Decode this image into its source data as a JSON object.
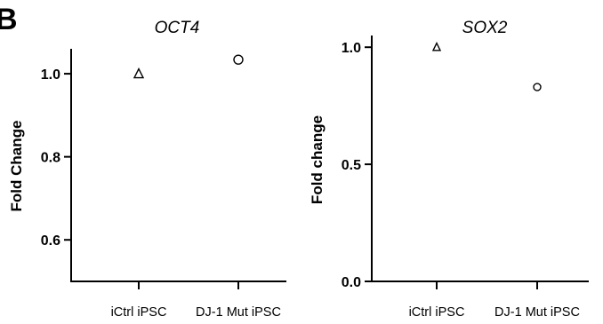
{
  "panel_letter": "B",
  "chart_data": [
    {
      "type": "scatter",
      "title": "OCT4",
      "xlabel": "",
      "ylabel": "Fold Change",
      "categories": [
        "iCtrl iPSC",
        "DJ-1 Mut iPSC"
      ],
      "values": [
        1.0,
        1.034
      ],
      "markers": [
        "triangle",
        "circle"
      ],
      "ylim": [
        0.5,
        1.06
      ],
      "yticks": [
        0.6,
        0.8,
        1.0
      ],
      "ytick_labels": [
        "0.6",
        "0.8",
        "1.0"
      ],
      "grid": false
    },
    {
      "type": "scatter",
      "title": "SOX2",
      "xlabel": "",
      "ylabel": "Fold change",
      "categories": [
        "iCtrl iPSC",
        "DJ-1 Mut iPSC"
      ],
      "values": [
        1.0,
        0.83
      ],
      "markers": [
        "triangle",
        "circle"
      ],
      "ylim": [
        0.0,
        1.05
      ],
      "yticks": [
        0.0,
        0.5,
        1.0
      ],
      "ytick_labels": [
        "0.0",
        "0.5",
        "1.0"
      ],
      "grid": false
    }
  ]
}
